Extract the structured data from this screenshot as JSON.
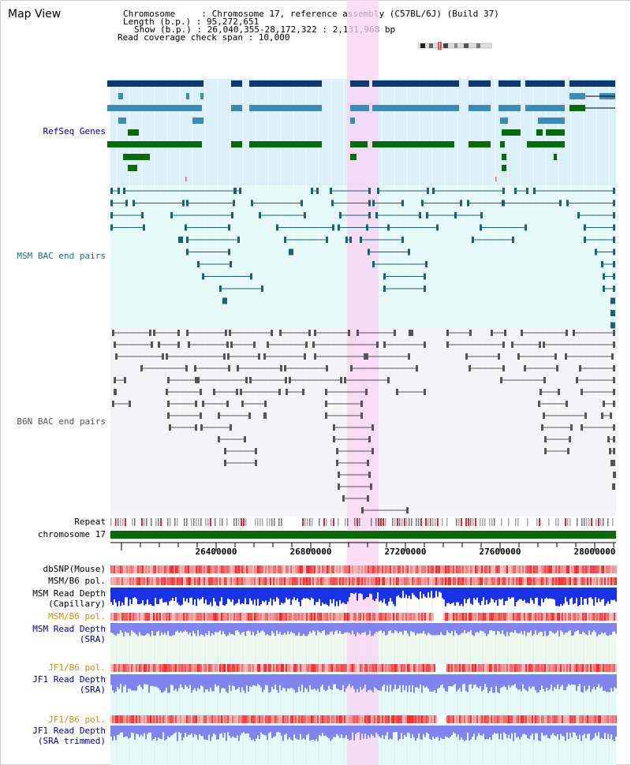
{
  "header": {
    "title": "Map View",
    "chromosome_label": "Chromosome     : ",
    "chromosome_value": "Chromosome 17, reference assembly (C57BL/6J) (Build 37)",
    "length_label": "Length (b.p.) : ",
    "length_value": "95,272,651",
    "show_label": "Show (b.p.) : ",
    "show_value": "26,040,355-28,172,322 : 2,131,968 bp",
    "coverage_label": "Read coverage check span : ",
    "coverage_value": "10,000"
  },
  "tracks": {
    "refseq": "RefSeq Genes",
    "msm_bac": "MSM BAC end pairs",
    "b6n_bac": "B6N BAC end pairs",
    "repeat": "Repeat",
    "chromosome": "chromosome 17",
    "dbsnp": "dbSNP(Mouse)",
    "msm_b6_pol_1": "MSM/B6 pol.",
    "msm_depth_cap_1": "MSM Read Depth",
    "msm_depth_cap_2": "(Capillary)",
    "msm_b6_pol_2": "MSM/B6 pol.",
    "msm_depth_sra_1": "MSM Read Depth",
    "msm_depth_sra_2": "(SRA)",
    "jf1_b6_pol_1": "JF1/B6 pol.",
    "jf1_depth_1": "JF1 Read Depth",
    "jf1_depth_2": "(SRA)",
    "jf1_b6_pol_2": "JF1/B6 pol.",
    "jf1_trim_1": "JF1 Read Depth",
    "jf1_trim_2": "(SRA trimmed)"
  },
  "axis": {
    "ticks": [
      "26400000",
      "26800000",
      "27200000",
      "27600000",
      "28000000"
    ]
  },
  "colors": {
    "refseq_bg": "#dcf0fa",
    "msm_bg": "#e6fafa",
    "b6n_bg": "#f5f5f8",
    "highlight": "#f9d2f3",
    "dark_gene": "#0d3a6e",
    "mid_gene": "#3d8bb5",
    "green_gene": "#0a6a0a",
    "msm_pair": "#1c5f7a",
    "b6n_pair": "#555555",
    "depth_blue": "#1a32e6",
    "depth_lightblue": "#7f84ee",
    "snp_red": "#e02828",
    "label_blue": "#0000a0",
    "label_orange": "#e08c00",
    "label_teal": "#1c6e8c"
  }
}
